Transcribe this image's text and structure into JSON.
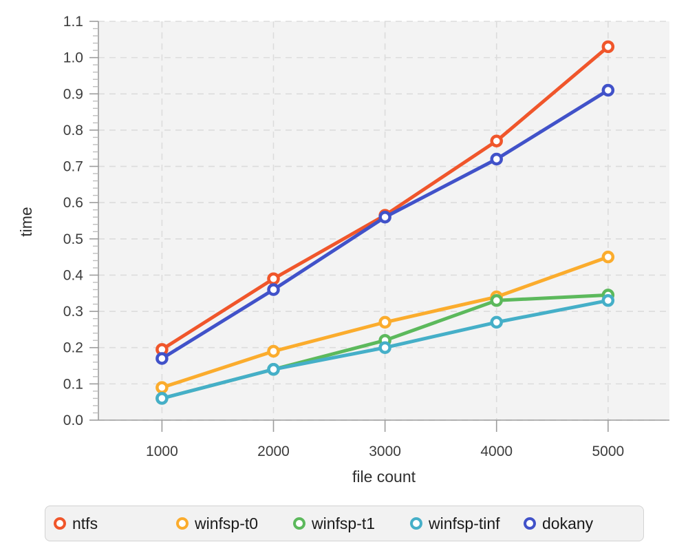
{
  "chart_data": {
    "type": "line",
    "x": [
      1000,
      2000,
      3000,
      4000,
      5000
    ],
    "x_ticks": [
      "1000",
      "2000",
      "3000",
      "4000",
      "5000"
    ],
    "y_ticks": [
      "0.0",
      "0.1",
      "0.2",
      "0.3",
      "0.4",
      "0.5",
      "0.6",
      "0.7",
      "0.8",
      "0.9",
      "1.0",
      "1.1"
    ],
    "series": [
      {
        "name": "ntfs",
        "color": "#f0562b",
        "values": [
          0.195,
          0.39,
          0.565,
          0.77,
          1.03
        ]
      },
      {
        "name": "winfsp-t0",
        "color": "#fbac2d",
        "values": [
          0.09,
          0.19,
          0.27,
          0.34,
          0.45
        ]
      },
      {
        "name": "winfsp-t1",
        "color": "#5cb95c",
        "values": [
          0.06,
          0.14,
          0.22,
          0.33,
          0.345
        ]
      },
      {
        "name": "winfsp-tinf",
        "color": "#45afc8",
        "values": [
          0.06,
          0.14,
          0.2,
          0.27,
          0.33
        ]
      },
      {
        "name": "dokany",
        "color": "#4152c9",
        "values": [
          0.17,
          0.36,
          0.56,
          0.72,
          0.91
        ]
      }
    ],
    "xlabel": "file count",
    "ylabel": "time",
    "xlim": [
      430,
      5550
    ],
    "ylim": [
      0,
      1.1
    ],
    "y_minor_step": 0.02,
    "grid": "dashed",
    "legend_position": "bottom",
    "plot_background": "#f3f3f3",
    "grid_color": "#dcdcdc",
    "axis_color": "#9c9c9c",
    "minor_tick_color": "#bdbdbd",
    "marker_style": "open-circle"
  }
}
